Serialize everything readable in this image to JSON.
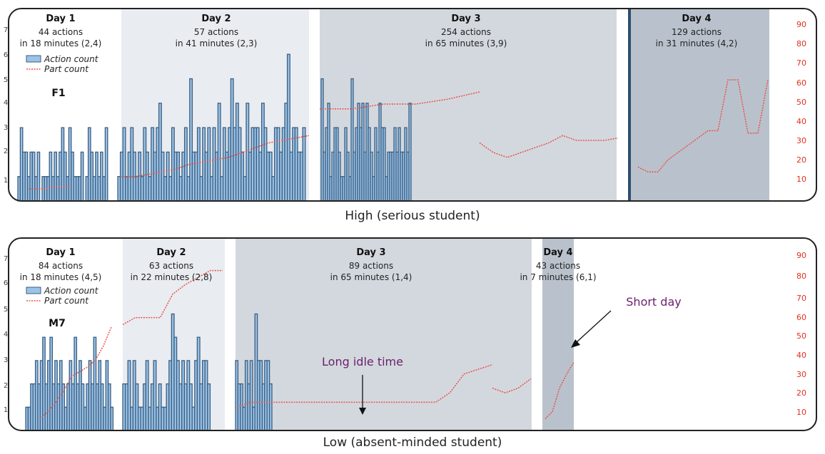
{
  "legend": {
    "action_label": "Action count",
    "part_label": "Part count"
  },
  "colors": {
    "bar_fill": "#9cc3e6",
    "bar_stroke": "#3b5f82",
    "part_line": "#e8534a",
    "axis_right": "#e0301e",
    "annotation": "#6b1f6b",
    "day_shade_1": "#e9ecf0",
    "day_shade_2": "#d3d8de",
    "day_shade_3": "#b9c2cc"
  },
  "panels": {
    "high": {
      "caption": "High (serious student)",
      "student_id": "F1",
      "left_ticks": [
        "1",
        "2",
        "3",
        "4",
        "5",
        "6",
        "7"
      ],
      "right_ticks": [
        "10",
        "20",
        "30",
        "40",
        "50",
        "60",
        "70",
        "80",
        "90"
      ],
      "days": [
        {
          "title": "Day 1",
          "actions": "44 actions",
          "duration": "in 18 minutes (2,4)"
        },
        {
          "title": "Day 2",
          "actions": "57 actions",
          "duration": "in 41 minutes (2,3)"
        },
        {
          "title": "Day 3",
          "actions": "254 actions",
          "duration": "in 65 minutes (3,9)"
        },
        {
          "title": "Day 4",
          "actions": "129 actions",
          "duration": "in 31 minutes (4,2)"
        }
      ]
    },
    "low": {
      "caption": "Low (absent-minded student)",
      "student_id": "M7",
      "left_ticks": [
        "1",
        "2",
        "3",
        "4",
        "5",
        "6",
        "7"
      ],
      "right_ticks": [
        "10",
        "20",
        "30",
        "40",
        "50",
        "60",
        "70",
        "80",
        "90"
      ],
      "days": [
        {
          "title": "Day 1",
          "actions": "84 actions",
          "duration": "in 18 minutes (4,5)"
        },
        {
          "title": "Day 2",
          "actions": "63 actions",
          "duration": "in 22 minutes (2,8)"
        },
        {
          "title": "Day 3",
          "actions": "89 actions",
          "duration": "in 65 minutes (1,4)"
        },
        {
          "title": "Day 4",
          "actions": "43 actions",
          "duration": "in 7 minutes (6,1)"
        }
      ],
      "annotations": {
        "long_idle": "Long idle time",
        "short_day": "Short day"
      }
    }
  },
  "chart_data": [
    {
      "type": "bar",
      "series": [
        {
          "name": "Action count",
          "axis": "left",
          "values": [
            1,
            3,
            2,
            2,
            1,
            2,
            2,
            1,
            2,
            0,
            1,
            1,
            1,
            2,
            1,
            2,
            1,
            2,
            3,
            2,
            1,
            3,
            2,
            1,
            1,
            1,
            2,
            0,
            1,
            3,
            2,
            1,
            2,
            1,
            2,
            1,
            3,
            1,
            2,
            3,
            1,
            2,
            3,
            2,
            1,
            2,
            1,
            3,
            2,
            1,
            3,
            2,
            3,
            4,
            2,
            1,
            2,
            1,
            3,
            2,
            2,
            1,
            2,
            3,
            1,
            5,
            2,
            2,
            3,
            1,
            3,
            2,
            3,
            1,
            3,
            2,
            4,
            1,
            3,
            2,
            3,
            5,
            3,
            4,
            3,
            2,
            1,
            4,
            2,
            3,
            3,
            3,
            2,
            4,
            3,
            2,
            2,
            1,
            3,
            3,
            2,
            3,
            4,
            6,
            2,
            3,
            3,
            2,
            2,
            3,
            5,
            2,
            3,
            4,
            1,
            2,
            3,
            3,
            2,
            1,
            1,
            3,
            2,
            1,
            5,
            2,
            3,
            4,
            3,
            4,
            2,
            4,
            3,
            2,
            1,
            3,
            2,
            4,
            3,
            3,
            1,
            2,
            2,
            2,
            3,
            2,
            3,
            2,
            2,
            3,
            2,
            4
          ]
        },
        {
          "name": "Part count",
          "axis": "right",
          "values": [
            5,
            5,
            6,
            6,
            10,
            10,
            11,
            12,
            13,
            15,
            16,
            17,
            18,
            20,
            22,
            24,
            25,
            26,
            27,
            38,
            38,
            40,
            40,
            42,
            45,
            24,
            20,
            18,
            20,
            22,
            24,
            27,
            25,
            25,
            25,
            26,
            14,
            12,
            12,
            17,
            20,
            23,
            26,
            29,
            29,
            50,
            50,
            28,
            28,
            50
          ]
        }
      ],
      "left_range": [
        0,
        7
      ],
      "right_range": [
        0,
        90
      ]
    },
    {
      "type": "bar",
      "series": [
        {
          "name": "Action count",
          "axis": "left",
          "values": [
            1,
            1,
            2,
            2,
            3,
            2,
            3,
            4,
            2,
            3,
            4,
            2,
            3,
            2,
            3,
            2,
            1,
            2,
            3,
            2,
            4,
            2,
            3,
            2,
            1,
            2,
            3,
            2,
            4,
            2,
            3,
            2,
            1,
            3,
            2,
            1,
            2,
            2,
            3,
            1,
            3,
            2,
            1,
            1,
            2,
            3,
            1,
            2,
            3,
            1,
            2,
            1,
            1,
            2,
            3,
            5,
            4,
            3,
            2,
            3,
            2,
            3,
            2,
            1,
            3,
            4,
            2,
            3,
            3,
            2,
            3,
            2,
            2,
            1,
            3,
            2,
            3,
            1,
            5,
            3,
            3,
            2,
            3,
            3,
            2
          ]
        },
        {
          "name": "Part count",
          "axis": "right",
          "values": [
            5,
            8,
            12,
            17,
            23,
            25,
            27,
            30,
            36,
            44,
            45,
            48,
            48,
            48,
            58,
            62,
            65,
            68,
            68,
            10,
            12,
            12,
            12,
            12,
            12,
            12,
            12,
            12,
            12,
            12,
            12,
            12,
            12,
            12,
            16,
            24,
            26,
            28,
            18,
            16,
            18,
            22,
            5,
            8,
            18,
            24,
            29
          ]
        }
      ],
      "left_range": [
        0,
        7
      ],
      "right_range": [
        0,
        90
      ]
    }
  ]
}
